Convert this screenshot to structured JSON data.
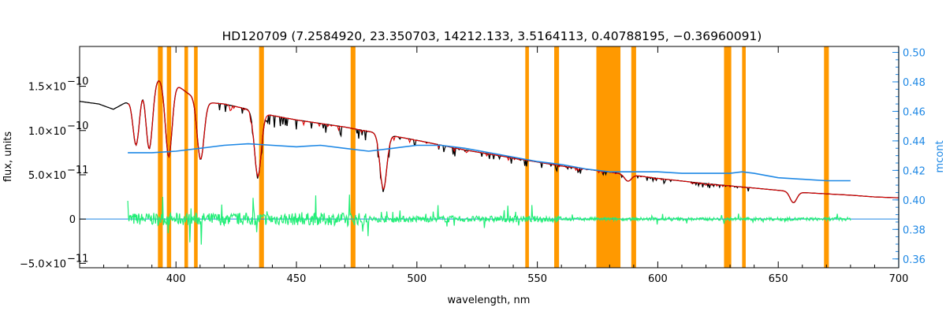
{
  "chart_data": {
    "type": "line",
    "title": "HD120709    (7.2584920, 23.350703, 14212.133, 3.5164113, 0.40788195, −0.36960091)",
    "xlabel": "wavelength, nm",
    "ylabel": "flux, units",
    "y2label": "mcont",
    "xlim": [
      360,
      700
    ],
    "ylim": [
      -5.5e-11,
      1.95e-10
    ],
    "y2lim": [
      0.354,
      0.504
    ],
    "x_ticks": [
      {
        "v": 400,
        "label": "400"
      },
      {
        "v": 450,
        "label": "450"
      },
      {
        "v": 500,
        "label": "500"
      },
      {
        "v": 550,
        "label": "550"
      },
      {
        "v": 600,
        "label": "600"
      },
      {
        "v": 650,
        "label": "650"
      },
      {
        "v": 700,
        "label": "700"
      }
    ],
    "y_ticks": [
      {
        "v": 1.5e-10,
        "mant": "1.5×10",
        "exp": "−10"
      },
      {
        "v": 1e-10,
        "mant": "1.0×10",
        "exp": "−10"
      },
      {
        "v": 5e-11,
        "mant": "5.0×10",
        "exp": "−11"
      },
      {
        "v": 0,
        "mant": "0",
        "exp": ""
      },
      {
        "v": -5e-11,
        "mant": "−5.0×10",
        "exp": "−11"
      }
    ],
    "y2_ticks": [
      {
        "v": 0.36,
        "label": "0.36"
      },
      {
        "v": 0.38,
        "label": "0.38"
      },
      {
        "v": 0.4,
        "label": "0.40"
      },
      {
        "v": 0.42,
        "label": "0.42"
      },
      {
        "v": 0.44,
        "label": "0.44"
      },
      {
        "v": 0.46,
        "label": "0.46"
      },
      {
        "v": 0.48,
        "label": "0.48"
      },
      {
        "v": 0.5,
        "label": "0.50"
      }
    ],
    "masked_regions": [
      [
        392.5,
        394.5
      ],
      [
        396.2,
        398
      ],
      [
        403.5,
        405
      ],
      [
        407.5,
        409
      ],
      [
        434.5,
        436.5
      ],
      [
        472.5,
        474.5
      ],
      [
        545,
        546.5
      ],
      [
        557,
        559
      ],
      [
        574.5,
        584.5
      ],
      [
        589,
        591
      ],
      [
        627.5,
        630.5
      ],
      [
        635,
        636.5
      ],
      [
        669,
        671
      ]
    ],
    "series": [
      {
        "key": "observed",
        "color": "#000000",
        "axis": "left",
        "points": [
          [
            360,
            1.33e-10
          ],
          [
            368,
            1.3e-10
          ],
          [
            374,
            1.24e-10
          ],
          [
            380,
            1.33e-10
          ],
          [
            384,
            1.55e-10
          ],
          [
            390,
            1.6e-10
          ],
          [
            398,
            1.56e-10
          ],
          [
            405,
            1.42e-10
          ],
          [
            412,
            1.32e-10
          ],
          [
            420,
            1.3e-10
          ],
          [
            430,
            1.24e-10
          ],
          [
            435,
            1.2e-10
          ],
          [
            440,
            1.17e-10
          ],
          [
            450,
            1.12e-10
          ],
          [
            460,
            1.08e-10
          ],
          [
            470,
            1.04e-10
          ],
          [
            480,
            9.9e-11
          ],
          [
            490,
            9.4e-11
          ],
          [
            500,
            8.9e-11
          ],
          [
            520,
            7.8e-11
          ],
          [
            540,
            6.9e-11
          ],
          [
            560,
            6e-11
          ],
          [
            580,
            5.3e-11
          ],
          [
            600,
            4.6e-11
          ],
          [
            620,
            4e-11
          ],
          [
            640,
            3.5e-11
          ],
          [
            660,
            3e-11
          ],
          [
            680,
            2.7e-11
          ],
          [
            690,
            2.5e-11
          ],
          [
            700,
            2.4e-11
          ]
        ]
      },
      {
        "key": "model",
        "color": "#e00000",
        "axis": "left",
        "points": [
          [
            380,
            1.33e-10
          ],
          [
            384,
            1.55e-10
          ],
          [
            390,
            1.6e-10
          ],
          [
            398,
            1.56e-10
          ],
          [
            405,
            1.42e-10
          ],
          [
            412,
            1.32e-10
          ],
          [
            420,
            1.3e-10
          ],
          [
            430,
            1.24e-10
          ],
          [
            435,
            1.2e-10
          ],
          [
            440,
            1.17e-10
          ],
          [
            450,
            1.12e-10
          ],
          [
            460,
            1.08e-10
          ],
          [
            470,
            1.04e-10
          ],
          [
            480,
            9.9e-11
          ],
          [
            490,
            9.4e-11
          ],
          [
            500,
            8.9e-11
          ],
          [
            520,
            7.8e-11
          ],
          [
            540,
            6.9e-11
          ],
          [
            560,
            6e-11
          ],
          [
            580,
            5.3e-11
          ],
          [
            600,
            4.6e-11
          ],
          [
            620,
            4e-11
          ],
          [
            640,
            3.5e-11
          ],
          [
            660,
            3e-11
          ],
          [
            680,
            2.7e-11
          ],
          [
            690,
            2.5e-11
          ],
          [
            700,
            2.4e-11
          ]
        ]
      },
      {
        "key": "residual",
        "color": "#22ee77",
        "axis": "left",
        "points": [
          [
            380,
            0
          ],
          [
            680,
            0
          ]
        ]
      },
      {
        "key": "mcont",
        "color": "#1e88e5",
        "axis": "right",
        "points": [
          [
            380,
            0.432
          ],
          [
            390,
            0.432
          ],
          [
            400,
            0.433
          ],
          [
            410,
            0.435
          ],
          [
            420,
            0.437
          ],
          [
            430,
            0.438
          ],
          [
            440,
            0.437
          ],
          [
            450,
            0.436
          ],
          [
            460,
            0.437
          ],
          [
            470,
            0.435
          ],
          [
            480,
            0.433
          ],
          [
            490,
            0.435
          ],
          [
            500,
            0.437
          ],
          [
            510,
            0.437
          ],
          [
            520,
            0.435
          ],
          [
            530,
            0.432
          ],
          [
            540,
            0.429
          ],
          [
            550,
            0.426
          ],
          [
            560,
            0.424
          ],
          [
            570,
            0.421
          ],
          [
            580,
            0.419
          ],
          [
            590,
            0.419
          ],
          [
            600,
            0.419
          ],
          [
            610,
            0.418
          ],
          [
            620,
            0.418
          ],
          [
            630,
            0.418
          ],
          [
            635,
            0.419
          ],
          [
            640,
            0.418
          ],
          [
            650,
            0.415
          ],
          [
            660,
            0.414
          ],
          [
            670,
            0.413
          ],
          [
            680,
            0.413
          ]
        ]
      }
    ],
    "zero_line_color": "#1e88e5",
    "mask_color": "#ff9900",
    "absorption_lines": [
      {
        "x": 383.5,
        "depth": 0.45
      },
      {
        "x": 388.9,
        "depth": 0.5
      },
      {
        "x": 397.0,
        "depth": 0.55
      },
      {
        "x": 410.2,
        "depth": 0.5
      },
      {
        "x": 434.0,
        "depth": 0.6
      },
      {
        "x": 486.1,
        "depth": 0.65
      },
      {
        "x": 587.6,
        "depth": 0.15
      },
      {
        "x": 656.3,
        "depth": 0.4
      }
    ]
  }
}
